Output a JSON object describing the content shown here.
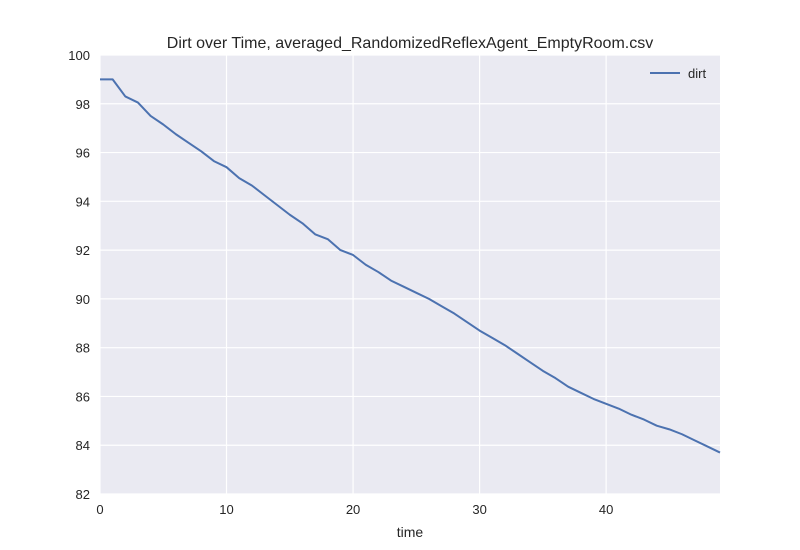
{
  "chart_data": {
    "type": "line",
    "title": "Dirt over Time, averaged_RandomizedReflexAgent_EmptyRoom.csv",
    "xlabel": "time",
    "ylabel": "",
    "xlim": [
      0,
      49
    ],
    "ylim": [
      82,
      100
    ],
    "xticks": [
      0,
      10,
      20,
      30,
      40
    ],
    "yticks": [
      82,
      84,
      86,
      88,
      90,
      92,
      94,
      96,
      98,
      100
    ],
    "grid": true,
    "legend_position": "top-right",
    "colors": {
      "plot_background": "#eaeaf2",
      "grid": "#ffffff",
      "line": "#4c72b0"
    },
    "series": [
      {
        "name": "dirt",
        "x": [
          0,
          1,
          2,
          3,
          4,
          5,
          6,
          7,
          8,
          9,
          10,
          11,
          12,
          13,
          14,
          15,
          16,
          17,
          18,
          19,
          20,
          21,
          22,
          23,
          24,
          25,
          26,
          27,
          28,
          29,
          30,
          31,
          32,
          33,
          34,
          35,
          36,
          37,
          38,
          39,
          40,
          41,
          42,
          43,
          44,
          45,
          46,
          47,
          48,
          49
        ],
        "values": [
          99.0,
          99.0,
          98.3,
          98.05,
          97.5,
          97.15,
          96.75,
          96.4,
          96.05,
          95.65,
          95.4,
          94.95,
          94.65,
          94.25,
          93.85,
          93.45,
          93.1,
          92.65,
          92.45,
          92.0,
          91.8,
          91.4,
          91.1,
          90.75,
          90.5,
          90.25,
          90.0,
          89.7,
          89.4,
          89.05,
          88.7,
          88.4,
          88.1,
          87.75,
          87.4,
          87.05,
          86.75,
          86.4,
          86.15,
          85.9,
          85.7,
          85.5,
          85.25,
          85.05,
          84.8,
          84.65,
          84.45,
          84.2,
          83.95,
          83.7
        ]
      }
    ]
  }
}
